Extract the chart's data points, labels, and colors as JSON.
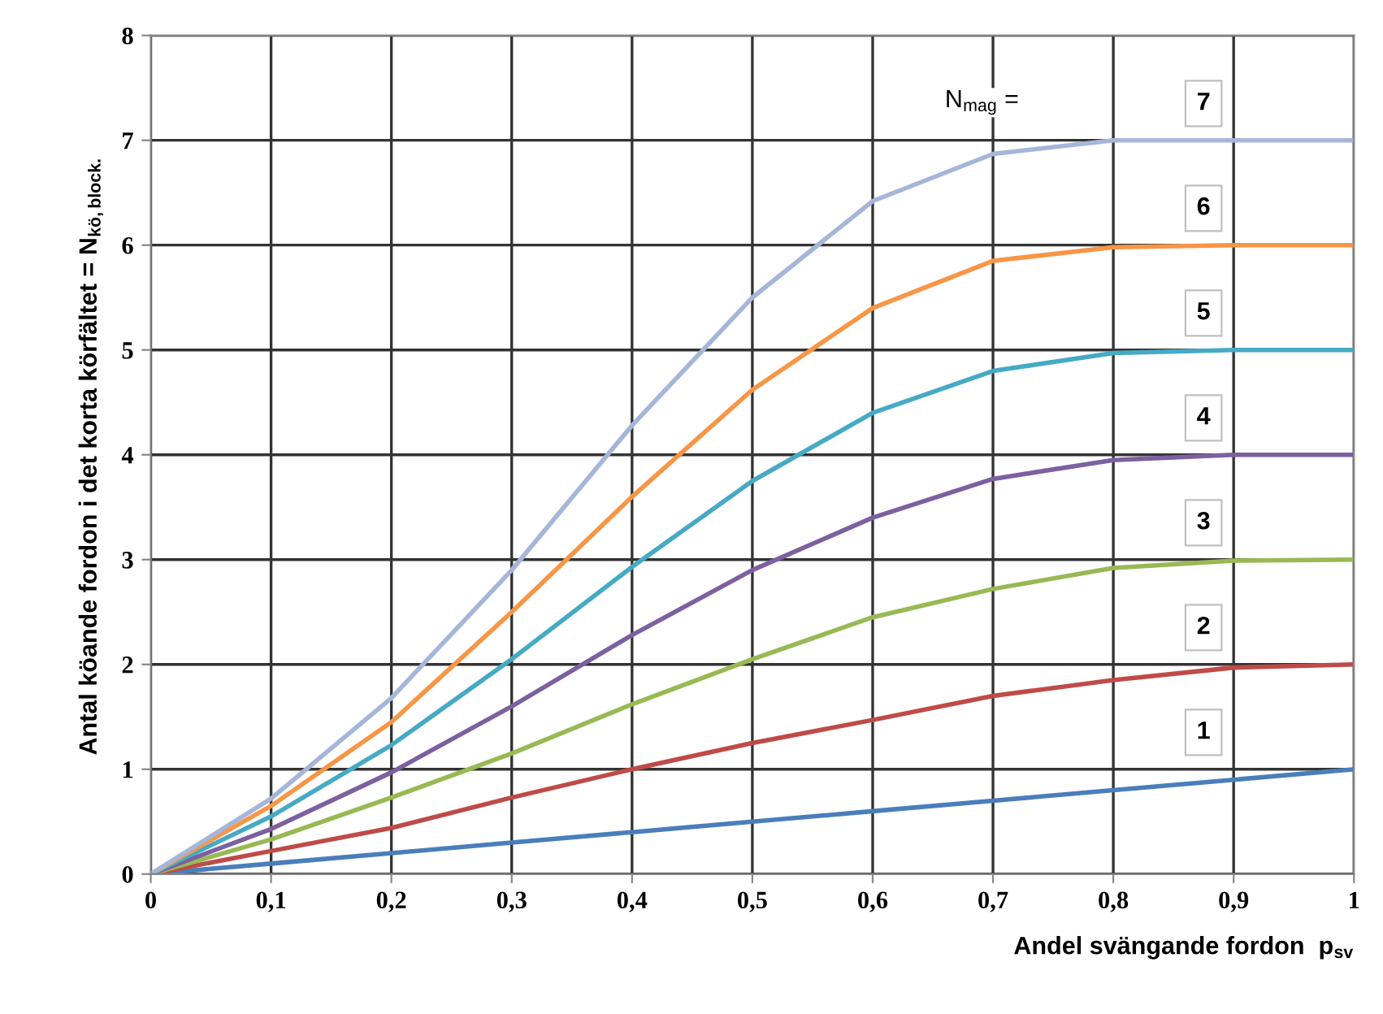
{
  "chart_data": {
    "type": "line",
    "xlabel": "Andel svängande fordon  p$_{sv}$",
    "ylabel": "Antal köande fordon i det korta körfältet = N$_{kö,block.}$",
    "annotations": [
      "N$_{mag}$ ="
    ],
    "x": [
      0,
      0.1,
      0.2,
      0.3,
      0.4,
      0.5,
      0.6,
      0.7,
      0.8,
      0.9,
      1
    ],
    "series": [
      {
        "name": "1",
        "color": "#4a7ebb",
        "values": [
          0,
          0.1,
          0.2,
          0.3,
          0.4,
          0.5,
          0.6,
          0.7,
          0.8,
          0.9,
          1.0
        ]
      },
      {
        "name": "2",
        "color": "#be4b48",
        "values": [
          0,
          0.22,
          0.44,
          0.73,
          1.0,
          1.25,
          1.47,
          1.7,
          1.85,
          1.97,
          2.0
        ]
      },
      {
        "name": "3",
        "color": "#98b954",
        "values": [
          0,
          0.33,
          0.73,
          1.15,
          1.62,
          2.05,
          2.45,
          2.72,
          2.92,
          2.99,
          3.0
        ]
      },
      {
        "name": "4",
        "color": "#7d60a0",
        "values": [
          0,
          0.43,
          0.97,
          1.6,
          2.28,
          2.9,
          3.4,
          3.77,
          3.95,
          4.0,
          4.0
        ]
      },
      {
        "name": "5",
        "color": "#46aac5",
        "values": [
          0,
          0.55,
          1.23,
          2.05,
          2.93,
          3.75,
          4.4,
          4.8,
          4.97,
          5.0,
          5.0
        ]
      },
      {
        "name": "6",
        "color": "#f79646",
        "values": [
          0,
          0.65,
          1.45,
          2.5,
          3.6,
          4.62,
          5.4,
          5.85,
          5.98,
          6.0,
          6.0
        ]
      },
      {
        "name": "7",
        "color": "#a5b6d9",
        "values": [
          0,
          0.72,
          1.68,
          2.9,
          4.28,
          5.5,
          6.42,
          6.87,
          7.0,
          7.0,
          7.0
        ]
      }
    ],
    "xlim": [
      0,
      1
    ],
    "ylim": [
      0,
      8
    ],
    "xticks": [
      0,
      {
        "value": 0.1,
        "label": "0,1"
      },
      {
        "value": 0.2,
        "label": "0,2"
      },
      {
        "value": 0.3,
        "label": "0,3"
      },
      {
        "value": 0.4,
        "label": "0,4"
      },
      {
        "value": 0.5,
        "label": "0,5"
      },
      {
        "value": 0.6,
        "label": "0,6"
      },
      {
        "value": 0.7,
        "label": "0,7"
      },
      {
        "value": 0.8,
        "label": "0,8"
      },
      {
        "value": 0.9,
        "label": "0,9"
      },
      1
    ],
    "yticks": [
      0,
      1,
      2,
      3,
      4,
      5,
      6,
      7,
      8
    ],
    "grid": true,
    "marker": "none",
    "line_style": "solid",
    "legend": false
  }
}
